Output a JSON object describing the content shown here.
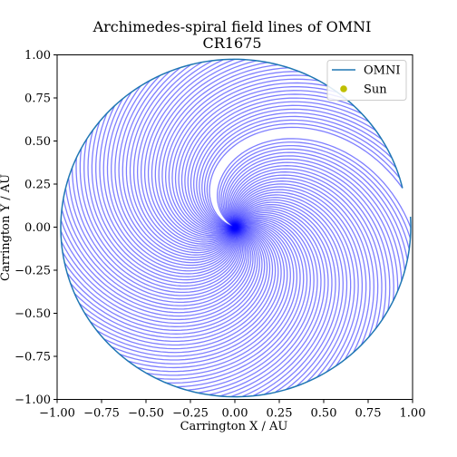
{
  "chart_data": {
    "type": "line",
    "title": "Archimedes-spiral field lines of OMNI",
    "subtitle": "CR1675",
    "xlabel": "Carrington X / AU",
    "ylabel": "Carrington Y / AU",
    "xlim": [
      -1.0,
      1.0
    ],
    "ylim": [
      -1.0,
      1.0
    ],
    "xticks": [
      -1.0,
      -0.75,
      -0.5,
      -0.25,
      0.0,
      0.25,
      0.5,
      0.75,
      1.0
    ],
    "xtick_labels": [
      "−1.00",
      "−0.75",
      "−0.50",
      "−0.25",
      "0.00",
      "0.25",
      "0.50",
      "0.75",
      "1.00"
    ],
    "yticks": [
      1.0,
      0.75,
      0.5,
      0.25,
      0.0,
      -0.25,
      -0.5,
      -0.75,
      -1.0
    ],
    "ytick_labels": [
      "1.00",
      "0.75",
      "0.50",
      "0.25",
      "0.00",
      "−0.25",
      "−0.50",
      "−0.75",
      "−1.00"
    ],
    "grid": false,
    "legend_placement": "upper right",
    "legend": [
      {
        "label": "OMNI",
        "kind": "line",
        "color": "#1f77b4"
      },
      {
        "label": "Sun",
        "kind": "marker",
        "color": "#bfbf00"
      }
    ],
    "omni_trajectory": {
      "color": "#1f77b4",
      "start_angle_deg": 13.5,
      "end_angle_deg": 363.5,
      "radius_au": [
        0.97,
        0.99
      ]
    },
    "spirals": {
      "color": "#0000ff",
      "opacity": 0.5,
      "count": 96,
      "rotation": "clockwise-outward",
      "wind_angle_deg": 150
    }
  }
}
